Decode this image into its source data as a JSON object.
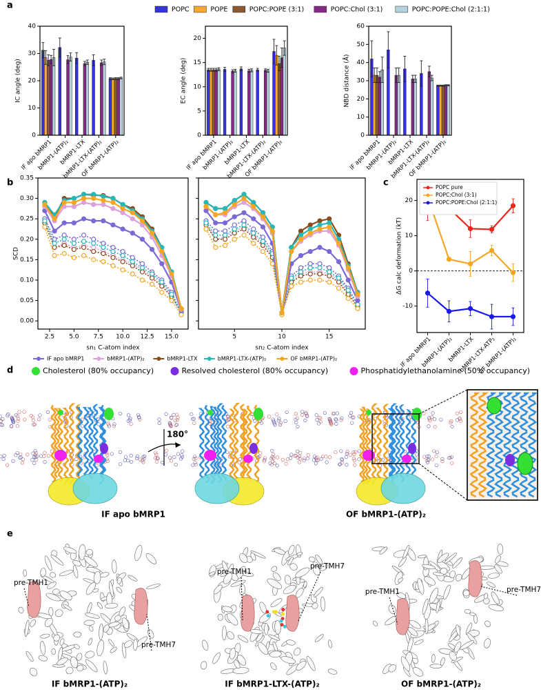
{
  "panel_labels": [
    "a",
    "b",
    "c",
    "d",
    "e"
  ],
  "chart_data": [
    {
      "type": "bar",
      "ylabel": "IC angle (deg)",
      "categories": [
        "IF apo bMRP1",
        "bMRP1-(ATP)₂",
        "bMRP1-LTX",
        "bMRP1-LTX-(ATP)₂",
        "OF bMRP1-(ATP)₂"
      ],
      "ylim": [
        0,
        40
      ],
      "yticks": [
        0,
        10,
        20,
        30,
        40
      ],
      "legend": "above",
      "series": [
        {
          "name": "POPC",
          "color": "#3636d8",
          "values": [
            31.2,
            32.2,
            28.3,
            27.5,
            20.8
          ],
          "errors": [
            2.8,
            3.5,
            2.0,
            2.0,
            0.3
          ]
        },
        {
          "name": "POPE",
          "color": "#f7a833",
          "values": [
            28.5,
            null,
            null,
            null,
            20.7
          ],
          "errors": [
            2.5,
            null,
            null,
            null,
            0.3
          ]
        },
        {
          "name": "POPC:POPE (3:1)",
          "color": "#8c5a30",
          "values": [
            27.5,
            null,
            null,
            null,
            20.8
          ],
          "errors": [
            2.0,
            null,
            null,
            null,
            0.3
          ]
        },
        {
          "name": "POPC:Chol (3:1)",
          "color": "#852a85",
          "values": [
            27.8,
            27.7,
            26.3,
            26.6,
            20.8
          ],
          "errors": [
            1.5,
            1.5,
            0.8,
            1.0,
            0.3
          ]
        },
        {
          "name": "POPC:POPE:Chol (2:1:1)",
          "color": "#b5d3df",
          "values": [
            28.5,
            28.7,
            26.8,
            26.9,
            21.0
          ],
          "errors": [
            3.0,
            1.5,
            0.8,
            1.0,
            0.3
          ]
        }
      ]
    },
    {
      "type": "bar",
      "ylabel": "EC angle (deg)",
      "categories": [
        "IF apo bMRP1",
        "bMRP1-(ATP)₂",
        "bMRP1-LTX",
        "bMRP1-LTX-(ATP)₂",
        "OF bMRP1-(ATP)₂"
      ],
      "ylim": [
        0,
        22.5
      ],
      "yticks": [
        0,
        5,
        10,
        15,
        20
      ],
      "series": [
        {
          "color": "#3636d8",
          "values": [
            13.5,
            13.6,
            13.7,
            13.5,
            17.3
          ],
          "errors": [
            0.3,
            0.4,
            0.4,
            0.3,
            2.5
          ]
        },
        {
          "color": "#f7a833",
          "values": [
            13.5,
            null,
            null,
            null,
            16.5
          ],
          "errors": [
            0.3,
            null,
            null,
            null,
            2.0
          ]
        },
        {
          "color": "#8c5a30",
          "values": [
            13.5,
            null,
            null,
            null,
            14.8
          ],
          "errors": [
            0.3,
            null,
            null,
            null,
            1.5
          ]
        },
        {
          "color": "#852a85",
          "values": [
            13.5,
            13.2,
            13.3,
            13.4,
            16.0
          ],
          "errors": [
            0.3,
            0.3,
            0.3,
            0.3,
            2.0
          ]
        },
        {
          "color": "#b5d3df",
          "values": [
            13.6,
            13.3,
            13.4,
            13.3,
            18.0
          ],
          "errors": [
            0.3,
            0.3,
            0.3,
            0.3,
            1.5
          ]
        }
      ]
    },
    {
      "type": "bar",
      "ylabel": "NBD distance (Å)",
      "categories": [
        "IF apo bMRP1",
        "bMRP1-(ATP)₂",
        "bMRP1-LTX",
        "bMRP1-LTX-(ATP)₂",
        "OF bMRP1-(ATP)₂"
      ],
      "ylim": [
        0,
        60
      ],
      "yticks": [
        0,
        10,
        20,
        30,
        40,
        50,
        60
      ],
      "series": [
        {
          "color": "#3636d8",
          "values": [
            42,
            47,
            36.5,
            34,
            27.3
          ],
          "errors": [
            10,
            10,
            7,
            7,
            0.3
          ]
        },
        {
          "color": "#f7a833",
          "values": [
            33,
            null,
            null,
            null,
            27.3
          ],
          "errors": [
            4,
            null,
            null,
            null,
            0.3
          ]
        },
        {
          "color": "#8c5a30",
          "values": [
            33,
            null,
            null,
            null,
            27.3
          ],
          "errors": [
            4,
            null,
            null,
            null,
            0.3
          ]
        },
        {
          "color": "#852a85",
          "values": [
            32,
            33,
            31,
            35,
            27.5
          ],
          "errors": [
            3,
            4,
            2,
            3,
            0.3
          ]
        },
        {
          "color": "#b5d3df",
          "values": [
            36,
            33,
            31,
            31.5,
            27.5
          ],
          "errors": [
            7,
            4,
            2,
            1.5,
            0.3
          ]
        }
      ]
    },
    {
      "type": "line",
      "ylabel": "SCD",
      "xlabel": "sn₁ C-atom index",
      "legend": "below",
      "x": [
        2,
        3,
        4,
        5,
        6,
        7,
        8,
        9,
        10,
        11,
        12,
        13,
        14,
        15,
        16
      ],
      "xlim": [
        1.3,
        16.7
      ],
      "xticks": [
        2.5,
        {
          "value": 5,
          "label": "5.0"
        },
        7.5,
        {
          "value": 10,
          "label": "10.0"
        },
        12.5,
        {
          "value": 15,
          "label": "15.0"
        }
      ],
      "ylim": [
        -0.02,
        0.35
      ],
      "yticks": [
        {
          "value": 0,
          "label": "0.00"
        },
        0.05,
        {
          "value": 0.1,
          "label": "0.10"
        },
        0.15,
        {
          "value": 0.2,
          "label": "0.20"
        },
        0.25,
        {
          "value": 0.3,
          "label": "0.30"
        },
        0.35
      ],
      "series": [
        {
          "color": "#7b68d4",
          "dashed": true,
          "values": [
            0.25,
            0.2,
            0.21,
            0.2,
            0.21,
            0.2,
            0.19,
            0.18,
            0.17,
            0.155,
            0.14,
            0.12,
            0.1,
            0.07,
            0.02
          ]
        },
        {
          "color": "#dda0dd",
          "dashed": true,
          "values": [
            0.24,
            0.18,
            0.19,
            0.18,
            0.185,
            0.18,
            0.17,
            0.16,
            0.15,
            0.14,
            0.125,
            0.11,
            0.09,
            0.06,
            0.02
          ]
        },
        {
          "color": "#8b4a1c",
          "dashed": true,
          "values": [
            0.24,
            0.18,
            0.185,
            0.175,
            0.18,
            0.17,
            0.165,
            0.155,
            0.145,
            0.135,
            0.12,
            0.105,
            0.085,
            0.06,
            0.02
          ]
        },
        {
          "color": "#26b8b8",
          "dashed": true,
          "values": [
            0.245,
            0.19,
            0.2,
            0.19,
            0.195,
            0.19,
            0.18,
            0.17,
            0.16,
            0.145,
            0.13,
            0.115,
            0.095,
            0.065,
            0.02
          ]
        },
        {
          "color": "#f5a623",
          "dashed": true,
          "values": [
            0.23,
            0.16,
            0.165,
            0.155,
            0.16,
            0.15,
            0.145,
            0.135,
            0.125,
            0.115,
            0.1,
            0.09,
            0.07,
            0.05,
            0.015
          ]
        },
        {
          "name": "IF apo bMRP1",
          "color": "#7b68d4",
          "values": [
            0.27,
            0.22,
            0.24,
            0.24,
            0.25,
            0.245,
            0.245,
            0.235,
            0.225,
            0.215,
            0.2,
            0.175,
            0.14,
            0.095,
            0.025
          ]
        },
        {
          "name": "bMRP1-(ATP)₂",
          "color": "#dda0dd",
          "values": [
            0.28,
            0.245,
            0.28,
            0.28,
            0.29,
            0.285,
            0.285,
            0.275,
            0.265,
            0.25,
            0.235,
            0.205,
            0.16,
            0.11,
            0.028
          ]
        },
        {
          "name": "bMRP1-LTX",
          "color": "#8b4a1c",
          "values": [
            0.29,
            0.255,
            0.3,
            0.3,
            0.31,
            0.308,
            0.307,
            0.3,
            0.285,
            0.275,
            0.255,
            0.225,
            0.18,
            0.12,
            0.03
          ]
        },
        {
          "name": "bMRP1-LTX-(ATP)₂",
          "color": "#26b8b8",
          "values": [
            0.29,
            0.26,
            0.295,
            0.3,
            0.31,
            0.31,
            0.305,
            0.3,
            0.285,
            0.27,
            0.25,
            0.22,
            0.18,
            0.12,
            0.03
          ]
        },
        {
          "name": "OF bMRP1-(ATP)₂",
          "color": "#f5a623",
          "values": [
            0.285,
            0.25,
            0.29,
            0.29,
            0.3,
            0.3,
            0.295,
            0.29,
            0.275,
            0.265,
            0.245,
            0.215,
            0.17,
            0.115,
            0.03
          ]
        }
      ]
    },
    {
      "type": "line",
      "xlabel": "sn₂ C-atom index",
      "x": [
        2,
        3,
        4,
        5,
        6,
        7,
        8,
        9,
        10,
        11,
        12,
        13,
        14,
        15,
        16,
        17,
        18
      ],
      "xlim": [
        1.2,
        18.8
      ],
      "xticks": [
        5,
        10,
        15
      ],
      "ylim": [
        -0.02,
        0.35
      ],
      "yticks": [
        0,
        0.05,
        0.1,
        0.15,
        0.2,
        0.25,
        0.3,
        0.35
      ],
      "ytick_labels": false,
      "series": [
        {
          "color": "#7b68d4",
          "dashed": true,
          "values": [
            0.245,
            0.22,
            0.22,
            0.235,
            0.245,
            0.225,
            0.205,
            0.17,
            0.02,
            0.11,
            0.13,
            0.14,
            0.14,
            0.13,
            0.11,
            0.08,
            0.04
          ]
        },
        {
          "color": "#dda0dd",
          "dashed": true,
          "values": [
            0.24,
            0.2,
            0.205,
            0.22,
            0.23,
            0.21,
            0.19,
            0.16,
            0.02,
            0.1,
            0.115,
            0.12,
            0.12,
            0.115,
            0.1,
            0.07,
            0.035
          ]
        },
        {
          "color": "#8b4a1c",
          "dashed": true,
          "values": [
            0.235,
            0.2,
            0.2,
            0.215,
            0.225,
            0.205,
            0.185,
            0.155,
            0.02,
            0.095,
            0.11,
            0.115,
            0.115,
            0.11,
            0.095,
            0.065,
            0.035
          ]
        },
        {
          "color": "#26b8b8",
          "dashed": true,
          "values": [
            0.24,
            0.21,
            0.21,
            0.225,
            0.235,
            0.215,
            0.195,
            0.165,
            0.02,
            0.105,
            0.12,
            0.13,
            0.13,
            0.12,
            0.105,
            0.075,
            0.04
          ]
        },
        {
          "color": "#f5a623",
          "dashed": true,
          "values": [
            0.225,
            0.18,
            0.185,
            0.2,
            0.21,
            0.19,
            0.17,
            0.14,
            0.015,
            0.085,
            0.095,
            0.1,
            0.1,
            0.095,
            0.08,
            0.055,
            0.03
          ]
        },
        {
          "color": "#7b68d4",
          "values": [
            0.27,
            0.24,
            0.24,
            0.255,
            0.265,
            0.25,
            0.23,
            0.19,
            0.02,
            0.14,
            0.16,
            0.17,
            0.18,
            0.17,
            0.145,
            0.1,
            0.05
          ]
        },
        {
          "color": "#dda0dd",
          "values": [
            0.28,
            0.26,
            0.26,
            0.28,
            0.29,
            0.275,
            0.25,
            0.215,
            0.02,
            0.17,
            0.195,
            0.21,
            0.22,
            0.22,
            0.185,
            0.125,
            0.06
          ]
        },
        {
          "color": "#8b4a1c",
          "values": [
            0.29,
            0.275,
            0.275,
            0.295,
            0.31,
            0.29,
            0.265,
            0.23,
            0.02,
            0.18,
            0.22,
            0.235,
            0.245,
            0.25,
            0.21,
            0.14,
            0.07
          ]
        },
        {
          "color": "#26b8b8",
          "values": [
            0.29,
            0.275,
            0.275,
            0.295,
            0.31,
            0.29,
            0.265,
            0.23,
            0.02,
            0.18,
            0.21,
            0.225,
            0.235,
            0.24,
            0.2,
            0.135,
            0.07
          ]
        },
        {
          "color": "#f5a623",
          "values": [
            0.28,
            0.26,
            0.265,
            0.285,
            0.3,
            0.28,
            0.255,
            0.22,
            0.02,
            0.17,
            0.2,
            0.215,
            0.225,
            0.23,
            0.19,
            0.13,
            0.065
          ]
        }
      ]
    },
    {
      "type": "line",
      "ylabel": "ΔG calc deformation (kT)",
      "legend": "upper left",
      "zero_line": true,
      "categories": [
        "IF apo bMRP1",
        "bMRP1-(ATP)₂",
        "bMRP1-LTX",
        "bMRP1-LTX-ATP₂",
        "OF bMRP1-(ATP)₂"
      ],
      "ylim": [
        -17.5,
        26
      ],
      "yticks": [
        -10,
        0,
        10,
        20
      ],
      "series": [
        {
          "name": "POPC pure",
          "color": "#e8261c",
          "values": [
            16.8,
            17.8,
            12.0,
            11.8,
            18.5
          ],
          "errors": [
            2.5,
            1.5,
            2.5,
            1.0,
            2.0
          ]
        },
        {
          "name": "POPC:Chol (3:1)",
          "color": "#f5a623",
          "values": [
            21.0,
            3.3,
            2.0,
            5.8,
            -0.5
          ],
          "errors": [
            3.0,
            0.5,
            3.5,
            1.5,
            2.5
          ]
        },
        {
          "name": "POPC:POPE:Chol (2:1:1)",
          "color": "#1a1ae6",
          "values": [
            -6.3,
            -11.5,
            -10.7,
            -13.0,
            -13.0
          ],
          "errors": [
            4.0,
            3.0,
            2.0,
            3.5,
            2.5
          ]
        }
      ]
    }
  ],
  "figure_d": {
    "legend": [
      "Cholesterol (80% occupancy)",
      "Resolved cholesterol (80% occupancy)",
      "Phosphatidylethanolamine (50% occupancy)"
    ],
    "legend_colors": [
      "#33e033",
      "#7a2ee0",
      "#f020f0"
    ],
    "rotation": "180°",
    "captions": [
      "IF apo bMRP1",
      "OF bMRP1-(ATP)₂"
    ]
  },
  "figure_e": {
    "annotations": [
      [
        "pre-TMH1",
        "pre-TMH7"
      ],
      [
        "pre-TMH1",
        "pre-TMH7"
      ],
      [
        "pre-TMH1",
        "pre-TMH7"
      ]
    ],
    "captions": [
      "IF bMRP1-(ATP)₂",
      "IF bMRP1-LTX-(ATP)₂",
      "OF bMRP1-(ATP)₂"
    ]
  }
}
